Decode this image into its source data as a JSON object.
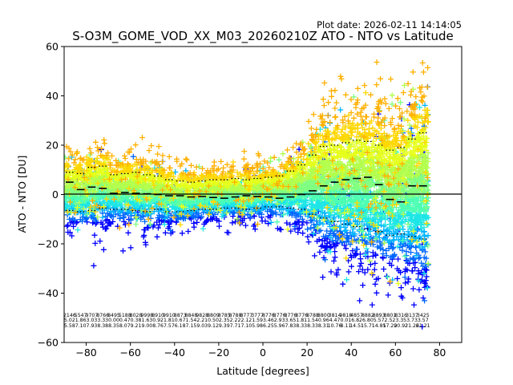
{
  "figure": {
    "plot_date": "Plot date: 2026-02-11 14:14:05",
    "title": "S-O3M_GOME_VOD_XX_M03_20260210Z ATO - NTO vs Latitude"
  },
  "colors": {
    "background": "#ffffff",
    "zero_line": "#000000",
    "bin_median": "#000000",
    "scatter_palette": [
      "#0000ff",
      "#0066ff",
      "#00b4ff",
      "#1ee6e6",
      "#4dffb3",
      "#80ff80",
      "#b3ff4d",
      "#e6ff1a",
      "#ffd700",
      "#ffb000"
    ]
  },
  "chart_data": {
    "type": "scatter",
    "title": "S-O3M_GOME_VOD_XX_M03_20260210Z ATO - NTO vs Latitude",
    "xlabel": "Latitude [degrees]",
    "ylabel": "ATO - NTO [DU]",
    "xlim": [
      -90,
      90
    ],
    "ylim": [
      -60,
      60
    ],
    "xticks": [
      -80,
      -60,
      -40,
      -20,
      0,
      20,
      40,
      60,
      80
    ],
    "yticks": [
      -60,
      -40,
      -20,
      0,
      20,
      40,
      60
    ],
    "xtick_labels": [
      "−80",
      "−60",
      "−40",
      "−20",
      "0",
      "20",
      "40",
      "60",
      "80"
    ],
    "ytick_labels": [
      "−60",
      "−40",
      "−20",
      "0",
      "20",
      "40",
      "60"
    ],
    "zero_line": 0,
    "grid": false,
    "marker": "+",
    "bins": [
      {
        "lat": -87.5,
        "n": "2146",
        "mean": "5.02",
        "std": "5.58",
        "median": 5.0,
        "p_lo": -6.5,
        "p_hi": 9.0
      },
      {
        "lat": -82.5,
        "n": "5547",
        "mean": "1.86",
        "std": "7.10",
        "median": 2.0,
        "p_lo": -7.0,
        "p_hi": 8.5
      },
      {
        "lat": -77.5,
        "n": "9707",
        "mean": "3.03",
        "std": "7.93",
        "median": 3.0,
        "p_lo": -6.5,
        "p_hi": 11.0
      },
      {
        "lat": -72.5,
        "n": "8766",
        "mean": "3.33",
        "std": "8.38",
        "median": 2.5,
        "p_lo": -5.5,
        "p_hi": 11.5
      },
      {
        "lat": -67.5,
        "n": "8495",
        "mean": "0.00",
        "std": "8.35",
        "median": 0.5,
        "p_lo": -6.0,
        "p_hi": 8.0
      },
      {
        "lat": -62.5,
        "n": "5188",
        "mean": "0.47",
        "std": "8.07",
        "median": 0.8,
        "p_lo": -6.0,
        "p_hi": 8.5
      },
      {
        "lat": -57.5,
        "n": "8028",
        "mean": "0.38",
        "std": "9.21",
        "median": 0.5,
        "p_lo": -6.5,
        "p_hi": 9.0
      },
      {
        "lat": -52.5,
        "n": "9998",
        "mean": "1.63",
        "std": "9.00",
        "median": 0.3,
        "p_lo": -7.0,
        "p_hi": 8.0
      },
      {
        "lat": -47.5,
        "n": "8910",
        "mean": "0.92",
        "std": "8.76",
        "median": 0.0,
        "p_lo": -6.0,
        "p_hi": 7.5
      },
      {
        "lat": -42.5,
        "n": "9910",
        "mean": "1.81",
        "std": "7.57",
        "median": -0.5,
        "p_lo": -7.0,
        "p_hi": 6.0
      },
      {
        "lat": -37.5,
        "n": "8873",
        "mean": "0.67",
        "std": "6.18",
        "median": -0.5,
        "p_lo": -7.0,
        "p_hi": 5.5
      },
      {
        "lat": -32.5,
        "n": "8848",
        "mean": "1.54",
        "std": "7.15",
        "median": -1.0,
        "p_lo": -6.5,
        "p_hi": 5.0
      },
      {
        "lat": -27.5,
        "n": "9828",
        "mean": "2.21",
        "std": "9.03",
        "median": -0.8,
        "p_lo": -6.0,
        "p_hi": 5.5
      },
      {
        "lat": -22.5,
        "n": "8809",
        "mean": "0.50",
        "std": "9.12",
        "median": -1.2,
        "p_lo": -6.0,
        "p_hi": 6.0
      },
      {
        "lat": -17.5,
        "n": "8785",
        "mean": "2.35",
        "std": "9.39",
        "median": -1.5,
        "p_lo": -5.5,
        "p_hi": 6.0
      },
      {
        "lat": -12.5,
        "n": "8788",
        "mean": "2.22",
        "std": "7.71",
        "median": -1.0,
        "p_lo": -5.5,
        "p_hi": 6.5
      },
      {
        "lat": -7.5,
        "n": "8777",
        "mean": "2.12",
        "std": "7.10",
        "median": -0.5,
        "p_lo": -6.0,
        "p_hi": 6.0
      },
      {
        "lat": -2.5,
        "n": "3777",
        "mean": "1.59",
        "std": "5.98",
        "median": -0.8,
        "p_lo": -5.5,
        "p_hi": 6.5
      },
      {
        "lat": 2.5,
        "n": "8776",
        "mean": "3.46",
        "std": "6.25",
        "median": -1.0,
        "p_lo": -5.0,
        "p_hi": 7.0
      },
      {
        "lat": 7.5,
        "n": "8776",
        "mean": "2.93",
        "std": "5.96",
        "median": -1.5,
        "p_lo": -5.0,
        "p_hi": 7.5
      },
      {
        "lat": 12.5,
        "n": "8776",
        "mean": "3.65",
        "std": "7.83",
        "median": -1.0,
        "p_lo": -5.5,
        "p_hi": 9.5
      },
      {
        "lat": 17.5,
        "n": "8776",
        "mean": "1.81",
        "std": "8.33",
        "median": 0.0,
        "p_lo": -6.0,
        "p_hi": 12.0
      },
      {
        "lat": 22.5,
        "n": "8788",
        "mean": "1.54",
        "std": "8.33",
        "median": 1.5,
        "p_lo": -8.0,
        "p_hi": 16.0
      },
      {
        "lat": 27.5,
        "n": "8800",
        "mean": "0.96",
        "std": "8.31",
        "median": 3.5,
        "p_lo": -9.5,
        "p_hi": 19.5
      },
      {
        "lat": 32.5,
        "n": "3814",
        "mean": "4.47",
        "std": "10.76",
        "median": 5.0,
        "p_lo": -11.0,
        "p_hi": 20.0
      },
      {
        "lat": 37.5,
        "n": "9818",
        "mean": "0.01",
        "std": "8.11",
        "median": 6.0,
        "p_lo": -12.0,
        "p_hi": 21.0
      },
      {
        "lat": 42.5,
        "n": "4857",
        "mean": "6.82",
        "std": "14.51",
        "median": 6.5,
        "p_lo": -13.0,
        "p_hi": 22.0
      },
      {
        "lat": 47.5,
        "n": "8882",
        "mean": "6.80",
        "std": "15.71",
        "median": 7.0,
        "p_lo": -14.0,
        "p_hi": 21.5
      },
      {
        "lat": 52.5,
        "n": "8893",
        "mean": "5.57",
        "std": "14.85",
        "median": 4.0,
        "p_lo": -15.0,
        "p_hi": 20.0
      },
      {
        "lat": 57.5,
        "n": "8801",
        "mean": "2.52",
        "std": "17.29",
        "median": -2.0,
        "p_lo": -16.5,
        "p_hi": 18.0
      },
      {
        "lat": 62.5,
        "n": "8316",
        "mean": "3.35",
        "std": "20.92",
        "median": -3.0,
        "p_lo": -16.0,
        "p_hi": 19.0
      },
      {
        "lat": 67.5,
        "n": "3137",
        "mean": "3.73",
        "std": "21.26",
        "median": 3.5,
        "p_lo": -17.0,
        "p_hi": 22.5
      },
      {
        "lat": 72.5,
        "n": "3425",
        "mean": "3.57",
        "std": "21.21",
        "median": 3.5,
        "p_lo": -18.0,
        "p_hi": 25.0
      }
    ]
  }
}
